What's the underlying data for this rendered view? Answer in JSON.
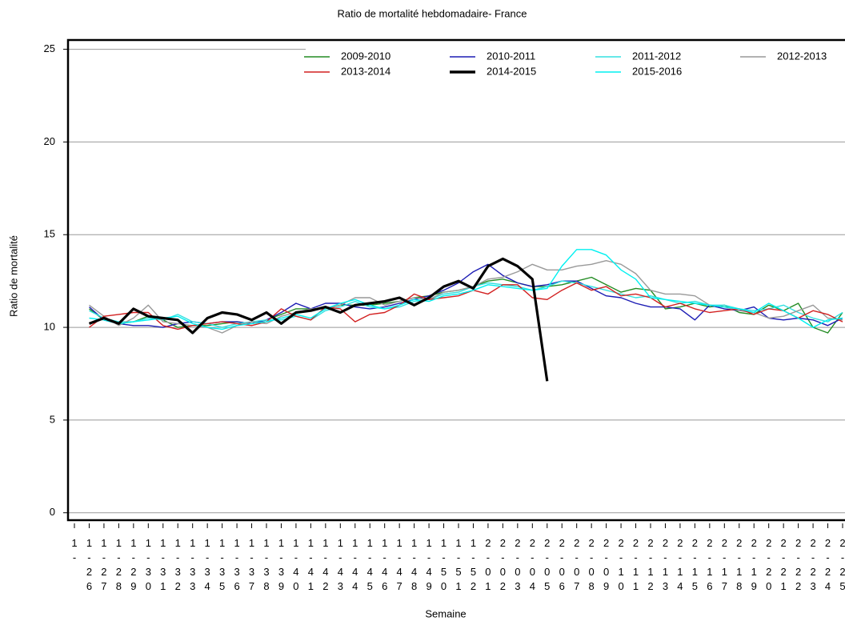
{
  "chart_data": {
    "type": "line",
    "title": "Ratio de mortalité hebdomadaire- France",
    "y_label": "Ratio de mortalité",
    "x_label": "Semaine",
    "categories": [
      "1-",
      "1-26",
      "1-27",
      "1-28",
      "1-29",
      "1-30",
      "1-31",
      "1-32",
      "1-33",
      "1-34",
      "1-35",
      "1-36",
      "1-37",
      "1-38",
      "1-39",
      "1-40",
      "1-41",
      "1-42",
      "1-43",
      "1-44",
      "1-45",
      "1-46",
      "1-47",
      "1-48",
      "1-49",
      "1-50",
      "1-51",
      "1-52",
      "2-01",
      "2-02",
      "2-03",
      "2-04",
      "2-05",
      "2-06",
      "2-07",
      "2-08",
      "2-09",
      "2-10",
      "2-11",
      "2-12",
      "2-13",
      "2-14",
      "2-15",
      "2-16",
      "2-17",
      "2-18",
      "2-19",
      "2-20",
      "2-21",
      "2-22",
      "2-23",
      "2-24",
      "2-25"
    ],
    "ylim": [
      -0.4,
      25.5
    ],
    "yticks": [
      0,
      5,
      10,
      15,
      20,
      25
    ],
    "grid": true,
    "legend": "top",
    "series": [
      {
        "name": "2009-2010",
        "color": "#228b22",
        "values": [
          null,
          11.0,
          10.4,
          10.2,
          10.3,
          10.6,
          10.4,
          10.0,
          10.1,
          10.1,
          10.2,
          10.3,
          10.2,
          10.4,
          10.7,
          11.0,
          11.0,
          11.0,
          11.2,
          11.2,
          11.2,
          11.3,
          11.4,
          11.6,
          11.7,
          11.9,
          12.0,
          12.2,
          12.5,
          12.6,
          12.4,
          12.2,
          12.2,
          12.3,
          12.5,
          12.7,
          12.3,
          11.9,
          12.1,
          12.0,
          11.0,
          11.1,
          11.3,
          11.1,
          11.2,
          10.8,
          10.7,
          11.2,
          10.9,
          11.3,
          10.0,
          9.7,
          10.8
        ]
      },
      {
        "name": "2010-2011",
        "color": "#1c1cb4",
        "values": [
          null,
          11.1,
          10.4,
          10.2,
          10.1,
          10.1,
          10.0,
          10.2,
          10.3,
          10.2,
          10.3,
          10.3,
          10.2,
          10.4,
          10.8,
          11.3,
          11.0,
          11.3,
          11.3,
          11.1,
          11.0,
          11.1,
          11.3,
          11.5,
          11.7,
          12.0,
          12.4,
          13.0,
          13.4,
          12.8,
          12.4,
          12.2,
          12.3,
          12.5,
          12.5,
          12.1,
          11.7,
          11.6,
          11.3,
          11.1,
          11.1,
          11.0,
          10.4,
          11.2,
          11.0,
          10.9,
          11.1,
          10.5,
          10.4,
          10.5,
          10.4,
          10.1,
          10.5
        ]
      },
      {
        "name": "2011-2012",
        "color": "#33e0e0",
        "values": [
          null,
          10.9,
          10.5,
          10.3,
          10.3,
          10.5,
          10.4,
          10.7,
          10.3,
          10.2,
          10.0,
          10.2,
          10.3,
          10.4,
          10.4,
          10.6,
          10.4,
          10.9,
          11.1,
          11.4,
          11.1,
          11.0,
          11.1,
          11.4,
          11.5,
          11.8,
          11.9,
          12.2,
          12.4,
          12.3,
          12.2,
          12.0,
          12.2,
          12.5,
          12.4,
          12.2,
          12.0,
          11.8,
          11.6,
          11.7,
          11.5,
          11.3,
          11.4,
          11.2,
          11.2,
          11.0,
          10.9,
          11.0,
          11.2,
          10.8,
          10.5,
          10.3,
          10.8
        ]
      },
      {
        "name": "2012-2013",
        "color": "#999999",
        "values": [
          null,
          11.2,
          10.6,
          10.1,
          10.5,
          11.2,
          10.3,
          10.2,
          10.1,
          10.0,
          9.7,
          10.1,
          10.3,
          10.2,
          10.6,
          10.8,
          11.0,
          11.0,
          11.2,
          11.6,
          11.6,
          11.2,
          11.4,
          11.6,
          11.5,
          11.9,
          12.0,
          12.2,
          12.6,
          12.7,
          13.0,
          13.4,
          13.1,
          13.1,
          13.3,
          13.4,
          13.6,
          13.4,
          12.9,
          12.0,
          11.8,
          11.8,
          11.7,
          11.2,
          11.1,
          10.9,
          10.8,
          10.5,
          10.6,
          10.9,
          11.2,
          10.5,
          10.4
        ]
      },
      {
        "name": "2013-2014",
        "color": "#d22020",
        "values": [
          null,
          10.0,
          10.6,
          10.7,
          10.8,
          10.8,
          10.1,
          9.9,
          10.1,
          10.2,
          10.3,
          10.2,
          10.1,
          10.3,
          11.0,
          10.6,
          10.4,
          11.1,
          11.0,
          10.3,
          10.7,
          10.8,
          11.2,
          11.8,
          11.5,
          11.6,
          11.7,
          12.0,
          11.8,
          12.3,
          12.3,
          11.6,
          11.5,
          12.0,
          12.4,
          12.0,
          12.2,
          11.7,
          11.8,
          11.6,
          11.1,
          11.3,
          11.0,
          10.8,
          10.9,
          11.0,
          10.7,
          11.0,
          10.9,
          10.5,
          10.9,
          10.7,
          10.3
        ]
      },
      {
        "name": "2015-2016",
        "color": "#00f0f0",
        "values": [
          null,
          10.5,
          10.4,
          10.2,
          10.3,
          10.4,
          10.5,
          10.6,
          10.2,
          10.0,
          9.9,
          10.1,
          10.2,
          10.3,
          10.5,
          10.7,
          10.5,
          11.0,
          11.3,
          11.5,
          11.2,
          11.0,
          11.2,
          11.5,
          11.4,
          11.7,
          11.8,
          12.0,
          12.3,
          12.2,
          12.1,
          12.0,
          12.1,
          13.3,
          14.2,
          14.2,
          13.9,
          13.1,
          12.6,
          11.6,
          11.5,
          11.4,
          11.3,
          11.2,
          11.1,
          11.0,
          10.8,
          11.3,
          10.9,
          10.5,
          10.0,
          10.4,
          10.5
        ]
      },
      {
        "name": "2014-2015",
        "color": "#000000",
        "values": [
          null,
          10.2,
          10.5,
          10.2,
          11.0,
          10.6,
          10.5,
          10.4,
          9.7,
          10.5,
          10.8,
          10.7,
          10.4,
          10.8,
          10.2,
          10.8,
          10.9,
          11.1,
          10.8,
          11.2,
          11.3,
          11.4,
          11.6,
          11.2,
          11.6,
          12.2,
          12.5,
          12.1,
          13.3,
          13.7,
          13.3,
          12.6,
          7.1,
          null,
          null,
          null,
          null,
          null,
          null,
          null,
          null,
          null,
          null,
          null,
          null,
          null,
          null,
          null,
          null,
          null,
          null,
          null,
          null
        ]
      }
    ]
  }
}
